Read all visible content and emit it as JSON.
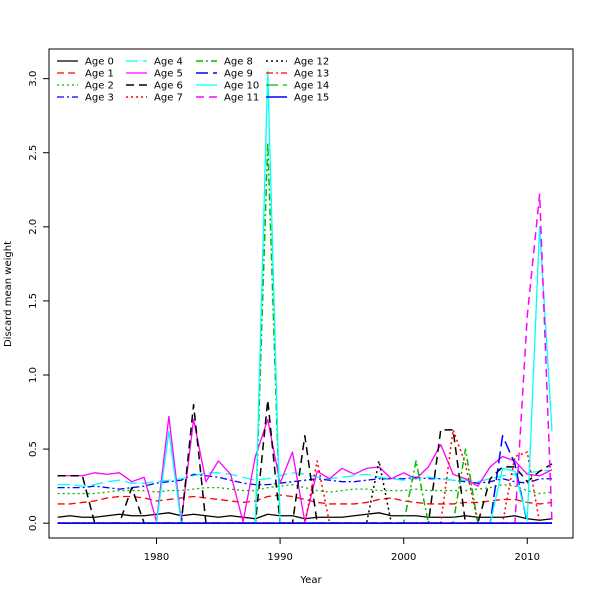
{
  "chart_data": {
    "type": "line",
    "title": "",
    "xlabel": "Year",
    "ylabel": "Discard mean weight",
    "xlim": [
      1971.3,
      2013.7
    ],
    "ylim": [
      -0.1,
      3.2
    ],
    "xticks": [
      1980,
      1990,
      2000,
      2010
    ],
    "yticks": [
      0.0,
      0.5,
      1.0,
      1.5,
      2.0,
      2.5,
      3.0
    ],
    "xtick_labels": [
      "1980",
      "1990",
      "2000",
      "2010"
    ],
    "ytick_labels": [
      "0.0",
      "0.5",
      "1.0",
      "1.5",
      "2.0",
      "2.5",
      "3.0"
    ],
    "legend_position": "top-left",
    "x": [
      1972,
      1973,
      1974,
      1975,
      1976,
      1977,
      1978,
      1979,
      1980,
      1981,
      1982,
      1983,
      1984,
      1985,
      1986,
      1987,
      1988,
      1989,
      1990,
      1991,
      1992,
      1993,
      1994,
      1995,
      1996,
      1997,
      1998,
      1999,
      2000,
      2001,
      2002,
      2003,
      2004,
      2005,
      2006,
      2007,
      2008,
      2009,
      2010,
      2011,
      2012
    ],
    "series": [
      {
        "name": "Age 0",
        "color": "#000000",
        "dash": "solid",
        "width": 1.3,
        "values": [
          0.04,
          0.05,
          0.04,
          0.04,
          0.05,
          0.06,
          0.05,
          0.05,
          0.06,
          0.07,
          0.05,
          0.06,
          0.05,
          0.04,
          0.05,
          0.04,
          0.03,
          0.06,
          0.05,
          0.05,
          0.03,
          0.04,
          0.04,
          0.04,
          0.05,
          0.06,
          0.07,
          0.05,
          0.05,
          0.05,
          0.04,
          0.04,
          0.04,
          0.05,
          0.04,
          0.04,
          0.04,
          0.05,
          0.03,
          0.02,
          0.03
        ]
      },
      {
        "name": "Age 1",
        "color": "#ff0000",
        "dash": "7,4",
        "width": 1.3,
        "values": [
          0.13,
          0.13,
          0.14,
          0.15,
          0.17,
          0.18,
          0.18,
          0.17,
          0.15,
          0.16,
          0.17,
          0.18,
          0.17,
          0.16,
          0.15,
          0.14,
          0.15,
          0.18,
          0.19,
          0.18,
          0.16,
          0.14,
          0.13,
          0.13,
          0.13,
          0.14,
          0.16,
          0.17,
          0.15,
          0.14,
          0.13,
          0.13,
          0.13,
          0.14,
          0.14,
          0.15,
          0.16,
          0.16,
          0.14,
          0.13,
          0.14
        ]
      },
      {
        "name": "Age 2",
        "color": "#00bb00",
        "dash": "2,3",
        "width": 1.3,
        "values": [
          0.2,
          0.2,
          0.2,
          0.2,
          0.21,
          0.22,
          0.22,
          0.22,
          0.21,
          0.22,
          0.22,
          0.23,
          0.24,
          0.24,
          0.23,
          0.22,
          0.22,
          0.24,
          0.25,
          0.26,
          0.24,
          0.22,
          0.21,
          0.22,
          0.23,
          0.23,
          0.22,
          0.22,
          0.22,
          0.23,
          0.22,
          0.22,
          0.22,
          0.22,
          0.23,
          0.24,
          0.26,
          0.25,
          0.22,
          0.2,
          0.21
        ]
      },
      {
        "name": "Age 3",
        "color": "#0000ff",
        "dash": "7,3,2,3",
        "width": 1.3,
        "values": [
          0.24,
          0.24,
          0.24,
          0.25,
          0.24,
          0.23,
          0.24,
          0.25,
          0.27,
          0.28,
          0.29,
          0.33,
          0.32,
          0.31,
          0.29,
          0.27,
          0.26,
          0.26,
          0.27,
          0.28,
          0.29,
          0.3,
          0.29,
          0.28,
          0.28,
          0.29,
          0.3,
          0.3,
          0.3,
          0.31,
          0.3,
          0.3,
          0.29,
          0.28,
          0.27,
          0.28,
          0.3,
          0.28,
          0.27,
          0.3,
          0.3
        ]
      },
      {
        "name": "Age 4",
        "color": "#00ffff",
        "dash": "12,5",
        "width": 1.3,
        "values": [
          0.26,
          0.26,
          0.25,
          0.26,
          0.28,
          0.29,
          0.27,
          0.27,
          0.28,
          0.29,
          0.3,
          0.32,
          0.34,
          0.34,
          0.33,
          0.31,
          0.29,
          0.3,
          0.32,
          0.34,
          0.33,
          0.31,
          0.3,
          0.31,
          0.32,
          0.33,
          0.31,
          0.3,
          0.29,
          0.3,
          0.31,
          0.3,
          0.29,
          0.29,
          0.28,
          0.3,
          0.32,
          0.33,
          0.34,
          0.35,
          0.36
        ]
      },
      {
        "name": "Age 5",
        "color": "#ff00ff",
        "dash": "solid",
        "width": 1.3,
        "values": [
          0.32,
          0.32,
          0.32,
          0.34,
          0.33,
          0.34,
          0.28,
          0.31,
          0.01,
          0.72,
          0.01,
          0.7,
          0.28,
          0.42,
          0.33,
          0.01,
          0.45,
          0.7,
          0.27,
          0.48,
          0.01,
          0.35,
          0.3,
          0.37,
          0.33,
          0.37,
          0.38,
          0.3,
          0.34,
          0.3,
          0.38,
          0.53,
          0.33,
          0.3,
          0.25,
          0.38,
          0.45,
          0.42,
          0.33,
          0.32,
          0.36
        ]
      },
      {
        "name": "Age 6",
        "color": "#000000",
        "dash": "8,5",
        "width": 1.5,
        "values": [
          0.32,
          0.32,
          0.32,
          0.0,
          0.0,
          0.0,
          0.24,
          0.0,
          0.0,
          0.0,
          0.0,
          0.8,
          0.0,
          0.0,
          0.0,
          0.0,
          0.0,
          0.83,
          0.0,
          0.0,
          0.59,
          0.0,
          0.0,
          0.0,
          0.0,
          0.0,
          0.0,
          0.0,
          0.0,
          0.0,
          0.0,
          0.63,
          0.63,
          0.0,
          0.0,
          0.3,
          0.38,
          0.38,
          0.28,
          0.35,
          0.4
        ]
      },
      {
        "name": "Age 7",
        "color": "#ff0000",
        "dash": "2,3",
        "width": 1.5,
        "values": [
          0.0,
          0.0,
          0.0,
          0.0,
          0.0,
          0.0,
          0.0,
          0.0,
          0.0,
          0.0,
          0.0,
          0.0,
          0.0,
          0.0,
          0.0,
          0.0,
          0.0,
          0.0,
          0.0,
          0.0,
          0.0,
          0.42,
          0.0,
          0.0,
          0.0,
          0.0,
          0.0,
          0.0,
          0.0,
          0.0,
          0.0,
          0.0,
          0.63,
          0.4,
          0.0,
          0.0,
          0.0,
          0.45,
          0.48,
          0.0,
          0.0
        ]
      },
      {
        "name": "Age 8",
        "color": "#00bb00",
        "dash": "7,3,2,3",
        "width": 1.5,
        "values": [
          0.0,
          0.0,
          0.0,
          0.0,
          0.0,
          0.0,
          0.0,
          0.0,
          0.0,
          0.0,
          0.0,
          0.0,
          0.0,
          0.0,
          0.0,
          0.0,
          0.0,
          2.57,
          0.0,
          0.0,
          0.0,
          0.0,
          0.0,
          0.0,
          0.0,
          0.0,
          0.0,
          0.0,
          0.0,
          0.42,
          0.0,
          0.0,
          0.0,
          0.5,
          0.0,
          0.0,
          0.0,
          0.0,
          0.0,
          0.0,
          0.0
        ]
      },
      {
        "name": "Age 9",
        "color": "#0000ff",
        "dash": "12,5",
        "width": 1.5,
        "values": [
          0.0,
          0.0,
          0.0,
          0.0,
          0.0,
          0.0,
          0.0,
          0.0,
          0.0,
          0.0,
          0.0,
          0.0,
          0.0,
          0.0,
          0.0,
          0.0,
          0.0,
          0.0,
          0.0,
          0.0,
          0.0,
          0.0,
          0.0,
          0.0,
          0.0,
          0.0,
          0.0,
          0.0,
          0.0,
          0.0,
          0.0,
          0.0,
          0.0,
          0.0,
          0.0,
          0.0,
          0.59,
          0.4,
          0.0,
          0.0,
          0.0
        ]
      },
      {
        "name": "Age 10",
        "color": "#00ffff",
        "dash": "solid",
        "width": 1.3,
        "values": [
          0.0,
          0.0,
          0.0,
          0.0,
          0.0,
          0.0,
          0.0,
          0.0,
          0.0,
          0.62,
          0.0,
          0.0,
          0.0,
          0.0,
          0.0,
          0.0,
          0.0,
          3.05,
          0.0,
          0.0,
          0.0,
          0.0,
          0.0,
          0.0,
          0.0,
          0.0,
          0.0,
          0.0,
          0.0,
          0.0,
          0.0,
          0.0,
          0.0,
          0.0,
          0.0,
          0.0,
          0.37,
          0.35,
          0.02,
          2.0,
          0.62
        ]
      },
      {
        "name": "Age 11",
        "color": "#ff00ff",
        "dash": "8,5",
        "width": 1.5,
        "values": [
          0.0,
          0.0,
          0.0,
          0.0,
          0.0,
          0.0,
          0.0,
          0.0,
          0.0,
          0.0,
          0.0,
          0.0,
          0.0,
          0.0,
          0.0,
          0.0,
          0.0,
          0.0,
          0.0,
          0.0,
          0.0,
          0.0,
          0.0,
          0.0,
          0.0,
          0.0,
          0.0,
          0.0,
          0.0,
          0.0,
          0.0,
          0.0,
          0.0,
          0.0,
          0.0,
          0.0,
          0.0,
          0.0,
          1.4,
          2.22,
          0.0
        ]
      },
      {
        "name": "Age 12",
        "color": "#000000",
        "dash": "2,3",
        "width": 1.5,
        "values": [
          0.0,
          0.0,
          0.0,
          0.0,
          0.0,
          0.0,
          0.0,
          0.0,
          0.0,
          0.0,
          0.0,
          0.0,
          0.0,
          0.0,
          0.0,
          0.0,
          0.0,
          0.0,
          0.0,
          0.0,
          0.0,
          0.0,
          0.0,
          0.0,
          0.0,
          0.0,
          0.42,
          0.0,
          0.0,
          0.0,
          0.0,
          0.0,
          0.0,
          0.0,
          0.0,
          0.0,
          0.0,
          0.0,
          0.0,
          0.0,
          0.0
        ]
      },
      {
        "name": "Age 13",
        "color": "#ff0000",
        "dash": "7,3,2,3",
        "width": 1.3,
        "values": [
          0.0,
          0.0,
          0.0,
          0.0,
          0.0,
          0.0,
          0.0,
          0.0,
          0.0,
          0.0,
          0.0,
          0.0,
          0.0,
          0.0,
          0.0,
          0.0,
          0.0,
          0.0,
          0.0,
          0.0,
          0.0,
          0.0,
          0.0,
          0.0,
          0.0,
          0.0,
          0.0,
          0.0,
          0.0,
          0.0,
          0.0,
          0.0,
          0.0,
          0.0,
          0.0,
          0.0,
          0.0,
          0.0,
          0.0,
          0.0,
          0.0
        ]
      },
      {
        "name": "Age 14",
        "color": "#00bb00",
        "dash": "12,5",
        "width": 1.3,
        "values": [
          0.0,
          0.0,
          0.0,
          0.0,
          0.0,
          0.0,
          0.0,
          0.0,
          0.0,
          0.0,
          0.0,
          0.0,
          0.0,
          0.0,
          0.0,
          0.0,
          0.0,
          0.0,
          0.0,
          0.0,
          0.0,
          0.0,
          0.0,
          0.0,
          0.0,
          0.0,
          0.0,
          0.0,
          0.0,
          0.0,
          0.0,
          0.0,
          0.0,
          0.0,
          0.0,
          0.0,
          0.0,
          0.0,
          0.0,
          0.0,
          0.0
        ]
      },
      {
        "name": "Age 15",
        "color": "#0000ff",
        "dash": "solid",
        "width": 1.6,
        "values": [
          0.0,
          0.0,
          0.0,
          0.0,
          0.0,
          0.0,
          0.0,
          0.0,
          0.0,
          0.0,
          0.0,
          0.0,
          0.0,
          0.0,
          0.0,
          0.0,
          0.0,
          0.0,
          0.0,
          0.0,
          0.0,
          0.0,
          0.0,
          0.0,
          0.0,
          0.0,
          0.0,
          0.0,
          0.0,
          0.0,
          0.0,
          0.0,
          0.0,
          0.0,
          0.0,
          0.0,
          0.0,
          0.0,
          0.0,
          0.0,
          0.0
        ]
      }
    ]
  }
}
